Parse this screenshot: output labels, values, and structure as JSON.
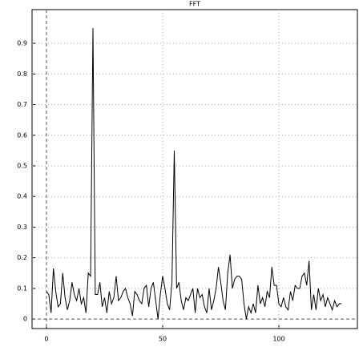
{
  "chart_data": {
    "type": "line",
    "title": "FFT",
    "x": [
      0,
      1,
      2,
      3,
      4,
      5,
      6,
      7,
      8,
      9,
      10,
      11,
      12,
      13,
      14,
      15,
      16,
      17,
      18,
      19,
      20,
      21,
      22,
      23,
      24,
      25,
      26,
      27,
      28,
      29,
      30,
      31,
      32,
      33,
      34,
      35,
      36,
      37,
      38,
      39,
      40,
      41,
      42,
      43,
      44,
      45,
      46,
      47,
      48,
      49,
      50,
      51,
      52,
      53,
      54,
      55,
      56,
      57,
      58,
      59,
      60,
      61,
      62,
      63,
      64,
      65,
      66,
      67,
      68,
      69,
      70,
      71,
      72,
      73,
      74,
      75,
      76,
      77,
      78,
      79,
      80,
      81,
      82,
      83,
      84,
      85,
      86,
      87,
      88,
      89,
      90,
      91,
      92,
      93,
      94,
      95,
      96,
      97,
      98,
      99,
      100,
      101,
      102,
      103,
      104,
      105,
      106,
      107,
      108,
      109,
      110,
      111,
      112,
      113,
      114,
      115,
      116,
      117,
      118,
      119,
      120,
      121,
      122,
      123,
      124,
      125,
      126,
      127
    ],
    "values": [
      0.09,
      0.08,
      0.02,
      0.165,
      0.09,
      0.04,
      0.05,
      0.15,
      0.07,
      0.03,
      0.06,
      0.12,
      0.08,
      0.06,
      0.1,
      0.05,
      0.07,
      0.02,
      0.15,
      0.14,
      0.95,
      0.08,
      0.08,
      0.12,
      0.04,
      0.07,
      0.02,
      0.09,
      0.05,
      0.07,
      0.14,
      0.06,
      0.07,
      0.09,
      0.1,
      0.07,
      0.05,
      0.01,
      0.09,
      0.08,
      0.06,
      0.05,
      0.1,
      0.11,
      0.04,
      0.1,
      0.12,
      0.06,
      0.0,
      0.08,
      0.14,
      0.1,
      0.05,
      0.03,
      0.12,
      0.55,
      0.1,
      0.12,
      0.06,
      0.03,
      0.07,
      0.06,
      0.08,
      0.1,
      0.02,
      0.1,
      0.07,
      0.08,
      0.04,
      0.02,
      0.1,
      0.03,
      0.06,
      0.1,
      0.17,
      0.12,
      0.06,
      0.03,
      0.15,
      0.21,
      0.1,
      0.13,
      0.14,
      0.14,
      0.13,
      0.05,
      0.0,
      0.04,
      0.02,
      0.05,
      0.02,
      0.11,
      0.05,
      0.07,
      0.04,
      0.09,
      0.07,
      0.17,
      0.11,
      0.11,
      0.05,
      0.04,
      0.07,
      0.04,
      0.03,
      0.09,
      0.06,
      0.11,
      0.1,
      0.1,
      0.14,
      0.15,
      0.11,
      0.19,
      0.03,
      0.08,
      0.03,
      0.1,
      0.06,
      0.08,
      0.04,
      0.07,
      0.05,
      0.03,
      0.06,
      0.04,
      0.05,
      0.05
    ],
    "color": "#000000",
    "xlim": [
      -6.2,
      133.8
    ],
    "xticks": [
      0,
      50,
      100
    ],
    "ylim": [
      -0.031,
      1.01
    ],
    "yticks": [
      0,
      0.1,
      0.2,
      0.3,
      0.4,
      0.5,
      0.6,
      0.7,
      0.8,
      0.9
    ],
    "grid": true
  }
}
